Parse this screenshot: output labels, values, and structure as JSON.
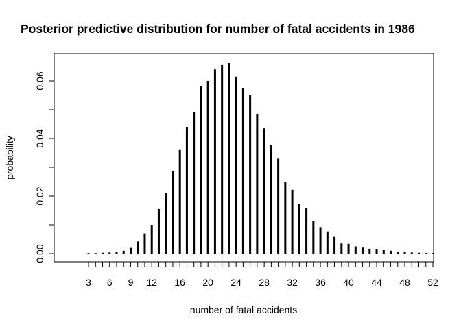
{
  "chart_data": {
    "type": "bar",
    "style": "histogram-spikes",
    "title": "Posterior predictive distribution for number of fatal accidents in 1986",
    "xlabel": "number of fatal accidents",
    "ylabel": "probability",
    "x_ticks": [
      3,
      6,
      9,
      12,
      16,
      20,
      24,
      28,
      32,
      36,
      40,
      44,
      48,
      52
    ],
    "y_ticks": [
      0.0,
      0.02,
      0.04,
      0.06
    ],
    "y_tick_labels": [
      "0.00",
      "0.02",
      "0.04",
      "0.06"
    ],
    "ylim": [
      0,
      0.066
    ],
    "x": [
      3,
      4,
      5,
      6,
      7,
      8,
      9,
      10,
      11,
      12,
      13,
      14,
      15,
      16,
      17,
      18,
      19,
      20,
      21,
      22,
      23,
      24,
      25,
      26,
      27,
      28,
      29,
      30,
      31,
      32,
      33,
      34,
      35,
      36,
      37,
      38,
      39,
      40,
      41,
      42,
      43,
      44,
      45,
      46,
      47,
      48,
      49,
      50,
      51,
      52
    ],
    "values": [
      0.0002,
      0.0002,
      0.0003,
      0.0004,
      0.0006,
      0.001,
      0.002,
      0.0042,
      0.007,
      0.01,
      0.0155,
      0.021,
      0.0287,
      0.036,
      0.044,
      0.0492,
      0.0582,
      0.06,
      0.064,
      0.0655,
      0.0662,
      0.0615,
      0.0575,
      0.0552,
      0.0485,
      0.0435,
      0.0378,
      0.033,
      0.0248,
      0.0222,
      0.0172,
      0.0158,
      0.0113,
      0.0092,
      0.0077,
      0.0058,
      0.0035,
      0.0034,
      0.0025,
      0.0021,
      0.0017,
      0.0015,
      0.0012,
      0.001,
      0.0007,
      0.0006,
      0.0004,
      0.0003,
      0.0002,
      0.0002
    ],
    "grid": false,
    "legend": "none"
  }
}
